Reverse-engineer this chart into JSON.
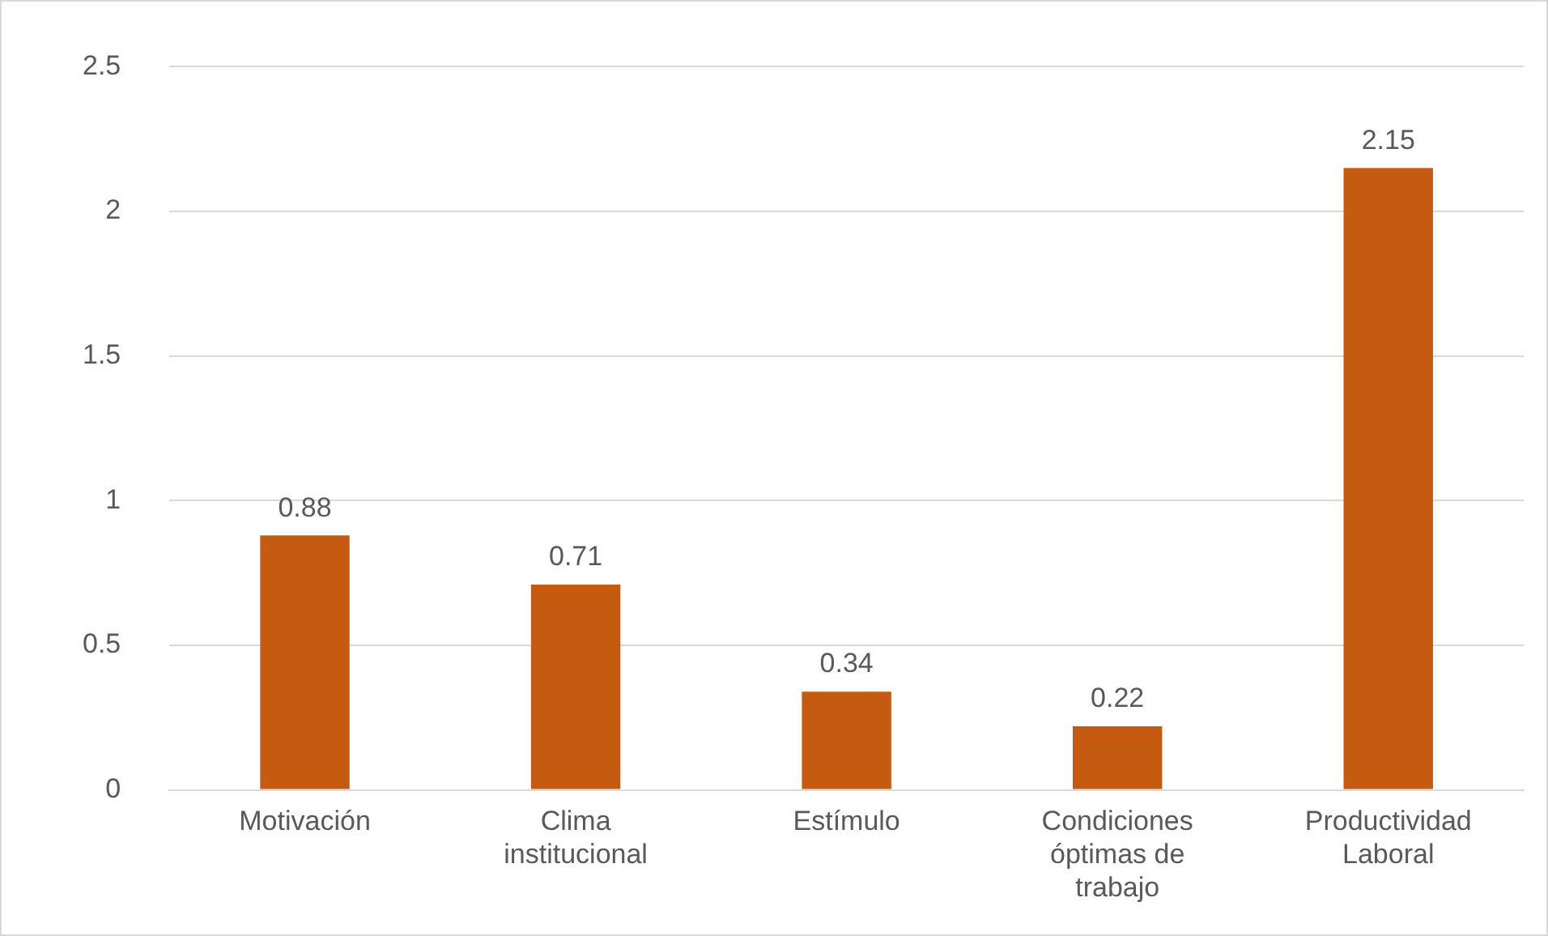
{
  "chart_data": {
    "type": "bar",
    "categories": [
      "Motivación",
      "Clima institucional",
      "Estímulo",
      "Condiciones óptimas de trabajo",
      "Productividad Laboral"
    ],
    "values": [
      0.88,
      0.71,
      0.34,
      0.22,
      2.15
    ],
    "color": "#c55a11",
    "ylim": [
      0,
      2.5
    ],
    "yticks": [
      0,
      0.5,
      1,
      1.5,
      2,
      2.5
    ],
    "grid": "y",
    "legend": false,
    "data_labels": true
  }
}
